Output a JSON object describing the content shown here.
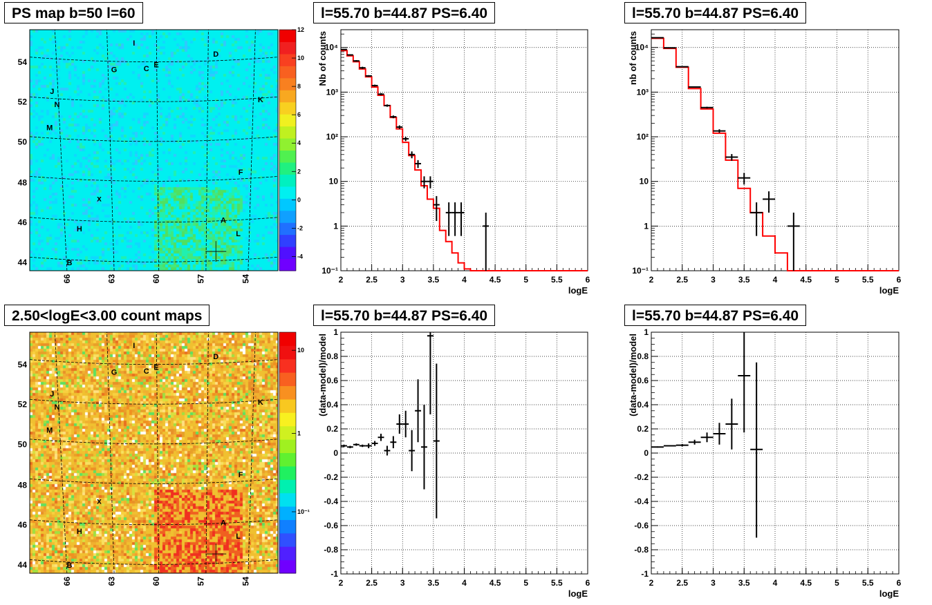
{
  "titles": {
    "ps_map": "PS map b=50 l=60",
    "spectrum_1": "l=55.70 b=44.87 PS=6.40",
    "spectrum_2": "l=55.70 b=44.87 PS=6.40",
    "count_map": "2.50<logE<3.00 count maps",
    "residual_1": "l=55.70 b=44.87 PS=6.40",
    "residual_2": "l=55.70 b=44.87 PS=6.40"
  },
  "colors": {
    "data": "#000000",
    "model": "#ff0000",
    "grid": "#000000",
    "psmap_background": "#00f0f0",
    "countmap_background": "#f0c030"
  },
  "chart_data": [
    {
      "id": "ps_map",
      "type": "heatmap",
      "title": "PS map b=50 l=60",
      "y_tick_labels": [
        "44",
        "46",
        "48",
        "50",
        "52",
        "54"
      ],
      "x_tick_labels": [
        "66",
        "63",
        "60",
        "57",
        "54"
      ],
      "colorbar_ticks": [
        "-4",
        "-2",
        "0",
        "2",
        "4",
        "6",
        "8",
        "10",
        "12"
      ],
      "zlim": [
        -5,
        12
      ],
      "sources": [
        "A",
        "B",
        "C",
        "D",
        "E",
        "F",
        "G",
        "H",
        "I",
        "J",
        "K",
        "L",
        "M",
        "N"
      ],
      "markers": [
        "x",
        "+"
      ]
    },
    {
      "id": "count_map",
      "type": "heatmap",
      "title": "2.50<logE<3.00 count maps",
      "y_tick_labels": [
        "44",
        "46",
        "48",
        "50",
        "52",
        "54"
      ],
      "x_tick_labels": [
        "66",
        "63",
        "60",
        "57",
        "54"
      ],
      "colorbar_ticks": [
        "10",
        "1",
        "10⁻¹"
      ],
      "log_z": true,
      "sources": [
        "A",
        "B",
        "C",
        "D",
        "E",
        "F",
        "G",
        "H",
        "I",
        "J",
        "K",
        "L",
        "M",
        "N"
      ],
      "markers": [
        "x",
        "+"
      ]
    },
    {
      "id": "spectrum_1",
      "type": "line",
      "title": "l=55.70 b=44.87 PS=6.40",
      "xlabel": "logE",
      "ylabel": "Nb of counts",
      "xlim": [
        2,
        6
      ],
      "ylim": [
        0.1,
        25000
      ],
      "log_y": true,
      "grid": true,
      "x_tick_labels": [
        "2",
        "2.5",
        "3",
        "3.5",
        "4",
        "4.5",
        "5",
        "5.5",
        "6"
      ],
      "y_tick_labels": [
        "10⁻¹",
        "1",
        "10",
        "10²",
        "10³",
        "10⁴"
      ],
      "model_edges": [
        2,
        2.1,
        2.2,
        2.3,
        2.4,
        2.5,
        2.6,
        2.7,
        2.8,
        2.9,
        3.0,
        3.1,
        3.2,
        3.3,
        3.4,
        3.5,
        3.6,
        3.7,
        3.8,
        3.9,
        4.0,
        4.1,
        6.0
      ],
      "model_values": [
        8500,
        6500,
        4800,
        3300,
        2200,
        1300,
        850,
        500,
        270,
        150,
        75,
        38,
        18,
        8,
        4,
        2.5,
        0.8,
        0.45,
        0.25,
        0.15,
        0.11,
        0.1
      ],
      "data_points": [
        {
          "x": 2.05,
          "y": 9000,
          "xerr": 0.05,
          "ylo": 8800,
          "yhi": 9200
        },
        {
          "x": 2.15,
          "y": 6800,
          "xerr": 0.05,
          "ylo": 6600,
          "yhi": 7000
        },
        {
          "x": 2.25,
          "y": 5000,
          "xerr": 0.05,
          "ylo": 4800,
          "yhi": 5200
        },
        {
          "x": 2.35,
          "y": 3500,
          "xerr": 0.05,
          "ylo": 3300,
          "yhi": 3700
        },
        {
          "x": 2.45,
          "y": 2300,
          "xerr": 0.05,
          "ylo": 2200,
          "yhi": 2400
        },
        {
          "x": 2.55,
          "y": 1400,
          "xerr": 0.05,
          "ylo": 1330,
          "yhi": 1470
        },
        {
          "x": 2.65,
          "y": 900,
          "xerr": 0.05,
          "ylo": 850,
          "yhi": 950
        },
        {
          "x": 2.75,
          "y": 500,
          "xerr": 0.05,
          "ylo": 470,
          "yhi": 530
        },
        {
          "x": 2.85,
          "y": 280,
          "xerr": 0.05,
          "ylo": 260,
          "yhi": 300
        },
        {
          "x": 2.95,
          "y": 165,
          "xerr": 0.05,
          "ylo": 150,
          "yhi": 180
        },
        {
          "x": 3.05,
          "y": 90,
          "xerr": 0.05,
          "ylo": 80,
          "yhi": 100
        },
        {
          "x": 3.15,
          "y": 40,
          "xerr": 0.05,
          "ylo": 33,
          "yhi": 47
        },
        {
          "x": 3.25,
          "y": 25,
          "xerr": 0.05,
          "ylo": 20,
          "yhi": 30
        },
        {
          "x": 3.35,
          "y": 10,
          "xerr": 0.05,
          "ylo": 7,
          "yhi": 13
        },
        {
          "x": 3.45,
          "y": 10,
          "xerr": 0.05,
          "ylo": 7,
          "yhi": 13
        },
        {
          "x": 3.55,
          "y": 3,
          "xerr": 0.05,
          "ylo": 1.3,
          "yhi": 4.7
        },
        {
          "x": 3.75,
          "y": 2,
          "xerr": 0.05,
          "ylo": 0.6,
          "yhi": 3.4
        },
        {
          "x": 3.85,
          "y": 2,
          "xerr": 0.05,
          "ylo": 0.6,
          "yhi": 3.4
        },
        {
          "x": 3.95,
          "y": 2,
          "xerr": 0.05,
          "ylo": 0.6,
          "yhi": 3.4
        },
        {
          "x": 4.35,
          "y": 1,
          "xerr": 0.05,
          "ylo": 0.1,
          "yhi": 2
        }
      ]
    },
    {
      "id": "spectrum_2",
      "type": "line",
      "title": "l=55.70 b=44.87 PS=6.40",
      "xlabel": "logE",
      "ylabel": "nb of counts",
      "xlim": [
        2,
        6
      ],
      "ylim": [
        0.1,
        25000
      ],
      "log_y": true,
      "grid": true,
      "x_tick_labels": [
        "2",
        "2.5",
        "3",
        "3.5",
        "4",
        "4.5",
        "5",
        "5.5",
        "6"
      ],
      "y_tick_labels": [
        "10⁻¹",
        "1",
        "10",
        "10²",
        "10³",
        "10⁴"
      ],
      "model_edges": [
        2,
        2.2,
        2.4,
        2.6,
        2.8,
        3.0,
        3.2,
        3.4,
        3.6,
        3.8,
        4.0,
        4.2,
        6.0
      ],
      "model_values": [
        16000,
        9500,
        3600,
        1200,
        420,
        120,
        30,
        7,
        2,
        0.6,
        0.25,
        0.1
      ],
      "data_points": [
        {
          "x": 2.1,
          "y": 16500,
          "xerr": 0.1,
          "ylo": 16200,
          "yhi": 16800
        },
        {
          "x": 2.3,
          "y": 9800,
          "xerr": 0.1,
          "ylo": 9600,
          "yhi": 10000
        },
        {
          "x": 2.5,
          "y": 3700,
          "xerr": 0.1,
          "ylo": 3600,
          "yhi": 3800
        },
        {
          "x": 2.7,
          "y": 1300,
          "xerr": 0.1,
          "ylo": 1260,
          "yhi": 1340
        },
        {
          "x": 2.9,
          "y": 450,
          "xerr": 0.1,
          "ylo": 430,
          "yhi": 470
        },
        {
          "x": 3.1,
          "y": 135,
          "xerr": 0.1,
          "ylo": 123,
          "yhi": 147
        },
        {
          "x": 3.3,
          "y": 35,
          "xerr": 0.1,
          "ylo": 29,
          "yhi": 41
        },
        {
          "x": 3.5,
          "y": 12,
          "xerr": 0.1,
          "ylo": 8.5,
          "yhi": 15.5
        },
        {
          "x": 3.7,
          "y": 2,
          "xerr": 0.1,
          "ylo": 0.6,
          "yhi": 3.4
        },
        {
          "x": 3.9,
          "y": 4,
          "xerr": 0.1,
          "ylo": 2,
          "yhi": 6
        },
        {
          "x": 4.3,
          "y": 1,
          "xerr": 0.1,
          "ylo": 0.1,
          "yhi": 2
        }
      ]
    },
    {
      "id": "residual_1",
      "type": "scatter",
      "title": "l=55.70 b=44.87 PS=6.40",
      "xlabel": "logE",
      "ylabel": "(data-model)/model",
      "xlim": [
        2,
        6
      ],
      "ylim": [
        -1,
        1
      ],
      "grid": true,
      "x_tick_labels": [
        "2",
        "2.5",
        "3",
        "3.5",
        "4",
        "4.5",
        "5",
        "5.5",
        "6"
      ],
      "y_tick_labels": [
        "-1",
        "-0.8",
        "-0.6",
        "-0.4",
        "-0.2",
        "0",
        "0.2",
        "0.4",
        "0.6",
        "0.8",
        "1"
      ],
      "data_points": [
        {
          "x": 2.05,
          "y": 0.06,
          "xerr": 0.05,
          "ylo": 0.05,
          "yhi": 0.07
        },
        {
          "x": 2.15,
          "y": 0.05,
          "xerr": 0.05,
          "ylo": 0.04,
          "yhi": 0.06
        },
        {
          "x": 2.25,
          "y": 0.07,
          "xerr": 0.05,
          "ylo": 0.06,
          "yhi": 0.08
        },
        {
          "x": 2.35,
          "y": 0.06,
          "xerr": 0.05,
          "ylo": 0.05,
          "yhi": 0.07
        },
        {
          "x": 2.45,
          "y": 0.06,
          "xerr": 0.05,
          "ylo": 0.04,
          "yhi": 0.08
        },
        {
          "x": 2.55,
          "y": 0.08,
          "xerr": 0.05,
          "ylo": 0.06,
          "yhi": 0.1
        },
        {
          "x": 2.65,
          "y": 0.13,
          "xerr": 0.05,
          "ylo": 0.1,
          "yhi": 0.16
        },
        {
          "x": 2.75,
          "y": 0.02,
          "xerr": 0.05,
          "ylo": -0.02,
          "yhi": 0.06
        },
        {
          "x": 2.85,
          "y": 0.09,
          "xerr": 0.05,
          "ylo": 0.04,
          "yhi": 0.14
        },
        {
          "x": 2.95,
          "y": 0.24,
          "xerr": 0.05,
          "ylo": 0.16,
          "yhi": 0.32
        },
        {
          "x": 3.05,
          "y": 0.24,
          "xerr": 0.05,
          "ylo": 0.13,
          "yhi": 0.35
        },
        {
          "x": 3.15,
          "y": 0.02,
          "xerr": 0.05,
          "ylo": -0.15,
          "yhi": 0.19
        },
        {
          "x": 3.25,
          "y": 0.35,
          "xerr": 0.05,
          "ylo": 0.09,
          "yhi": 0.61
        },
        {
          "x": 3.35,
          "y": 0.05,
          "xerr": 0.05,
          "ylo": -0.3,
          "yhi": 0.4
        },
        {
          "x": 3.45,
          "y": 0.97,
          "xerr": 0.05,
          "ylo": 0.32,
          "yhi": 1.0
        },
        {
          "x": 3.55,
          "y": 0.1,
          "xerr": 0.05,
          "ylo": -0.54,
          "yhi": 0.74
        }
      ]
    },
    {
      "id": "residual_2",
      "type": "scatter",
      "title": "l=55.70 b=44.87 PS=6.40",
      "xlabel": "logE",
      "ylabel": "(data-model)/model",
      "xlim": [
        2,
        6
      ],
      "ylim": [
        -1,
        1
      ],
      "grid": true,
      "x_tick_labels": [
        "2",
        "2.5",
        "3",
        "3.5",
        "4",
        "4.5",
        "5",
        "5.5",
        "6"
      ],
      "y_tick_labels": [
        "-1",
        "-0.8",
        "-0.6",
        "-0.4",
        "-0.2",
        "0",
        "0.2",
        "0.4",
        "0.6",
        "0.8",
        "1"
      ],
      "data_points": [
        {
          "x": 2.1,
          "y": 0.05,
          "xerr": 0.1,
          "ylo": 0.045,
          "yhi": 0.055
        },
        {
          "x": 2.3,
          "y": 0.06,
          "xerr": 0.1,
          "ylo": 0.055,
          "yhi": 0.065
        },
        {
          "x": 2.5,
          "y": 0.065,
          "xerr": 0.1,
          "ylo": 0.055,
          "yhi": 0.075
        },
        {
          "x": 2.7,
          "y": 0.09,
          "xerr": 0.1,
          "ylo": 0.07,
          "yhi": 0.11
        },
        {
          "x": 2.9,
          "y": 0.13,
          "xerr": 0.1,
          "ylo": 0.09,
          "yhi": 0.17
        },
        {
          "x": 3.1,
          "y": 0.16,
          "xerr": 0.1,
          "ylo": 0.07,
          "yhi": 0.25
        },
        {
          "x": 3.3,
          "y": 0.24,
          "xerr": 0.1,
          "ylo": 0.03,
          "yhi": 0.45
        },
        {
          "x": 3.5,
          "y": 0.64,
          "xerr": 0.1,
          "ylo": 0.17,
          "yhi": 1.0
        },
        {
          "x": 3.7,
          "y": 0.03,
          "xerr": 0.1,
          "ylo": -0.7,
          "yhi": 0.75
        }
      ]
    }
  ]
}
